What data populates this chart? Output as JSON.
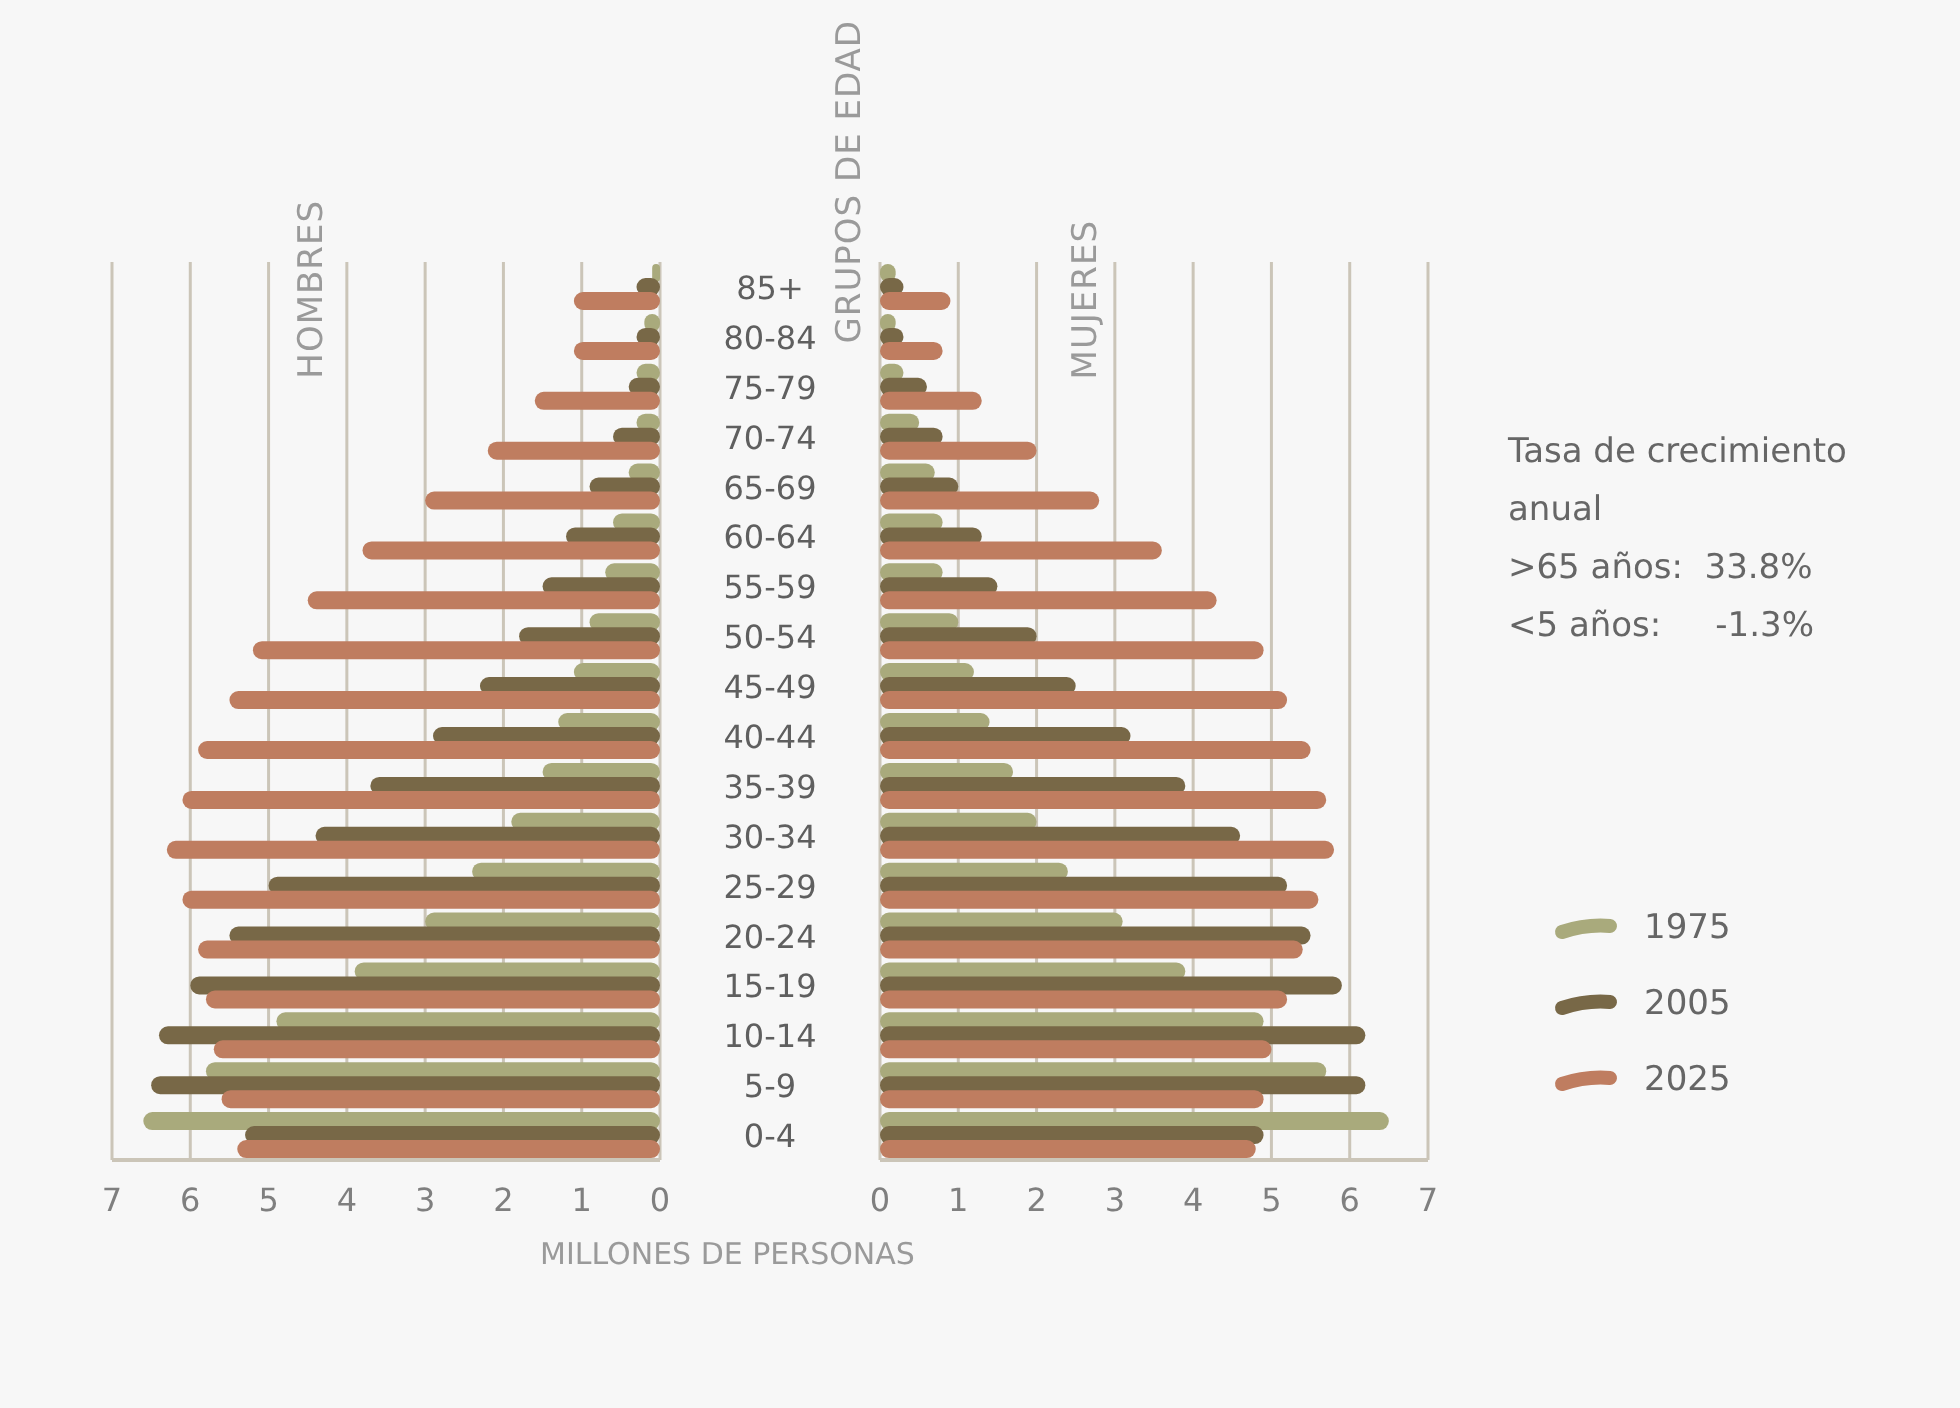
{
  "chart_data": [
    {
      "type": "bar",
      "orientation": "horizontal",
      "title": "HOMBRES",
      "xlabel": "MILLONES DE PERSONAS",
      "categories": [
        "85+",
        "80-84",
        "75-79",
        "70-74",
        "65-69",
        "60-64",
        "55-59",
        "50-54",
        "45-49",
        "40-44",
        "35-39",
        "30-34",
        "25-29",
        "20-24",
        "15-19",
        "10-14",
        "5-9",
        "0-4"
      ],
      "series": [
        {
          "color": "#a9aa7c",
          "values": [
            0.1,
            0.2,
            0.3,
            0.3,
            0.4,
            0.6,
            0.7,
            0.9,
            1.1,
            1.3,
            1.5,
            1.9,
            2.4,
            3.0,
            3.9,
            4.9,
            5.8,
            6.6
          ]
        },
        {
          "color": "#786847",
          "values": [
            0.3,
            0.3,
            0.4,
            0.6,
            0.9,
            1.2,
            1.5,
            1.8,
            2.3,
            2.9,
            3.7,
            4.4,
            5.0,
            5.5,
            6.0,
            6.4,
            6.5,
            5.3
          ]
        },
        {
          "color": "#bf7d60",
          "values": [
            1.1,
            1.1,
            1.6,
            2.2,
            3.0,
            3.8,
            4.5,
            5.2,
            5.5,
            5.9,
            6.1,
            6.3,
            6.1,
            5.9,
            5.8,
            5.7,
            5.6,
            5.4
          ]
        }
      ],
      "xlim": [
        7,
        0
      ],
      "xticks": [
        0,
        1,
        2,
        3,
        4,
        5,
        6,
        7
      ],
      "grid": "x",
      "tick_labels": "x"
    },
    {
      "type": "bar",
      "orientation": "horizontal",
      "title": "MUJERES",
      "ylabel": "GRUPOS DE EDAD",
      "categories": [
        "85+",
        "80-84",
        "75-79",
        "70-74",
        "65-69",
        "60-64",
        "55-59",
        "50-54",
        "45-49",
        "40-44",
        "35-39",
        "30-34",
        "25-29",
        "20-24",
        "15-19",
        "10-14",
        "5-9",
        "0-4"
      ],
      "series": [
        {
          "name": "1975",
          "color": "#a9aa7c",
          "values": [
            0.2,
            0.2,
            0.3,
            0.5,
            0.7,
            0.8,
            0.8,
            1.0,
            1.2,
            1.4,
            1.7,
            2.0,
            2.4,
            3.1,
            3.9,
            4.9,
            5.7,
            6.5
          ]
        },
        {
          "name": "2005",
          "color": "#786847",
          "values": [
            0.3,
            0.3,
            0.6,
            0.8,
            1.0,
            1.3,
            1.5,
            2.0,
            2.5,
            3.2,
            3.9,
            4.6,
            5.2,
            5.5,
            5.9,
            6.2,
            6.2,
            4.9
          ]
        },
        {
          "name": "2025",
          "color": "#bf7d60",
          "values": [
            0.9,
            0.8,
            1.3,
            2.0,
            2.8,
            3.6,
            4.3,
            4.9,
            5.2,
            5.5,
            5.7,
            5.8,
            5.6,
            5.4,
            5.2,
            5.0,
            4.9,
            4.8
          ]
        }
      ],
      "xlim": [
        0,
        7
      ],
      "xticks": [
        0,
        1,
        2,
        3,
        4,
        5,
        6,
        7
      ],
      "grid": "x",
      "legend": "right",
      "annotations": [
        "Tasa de crecimiento anual",
        ">65 años:  33.8%",
        "<5 años:     -1.3%"
      ]
    }
  ]
}
